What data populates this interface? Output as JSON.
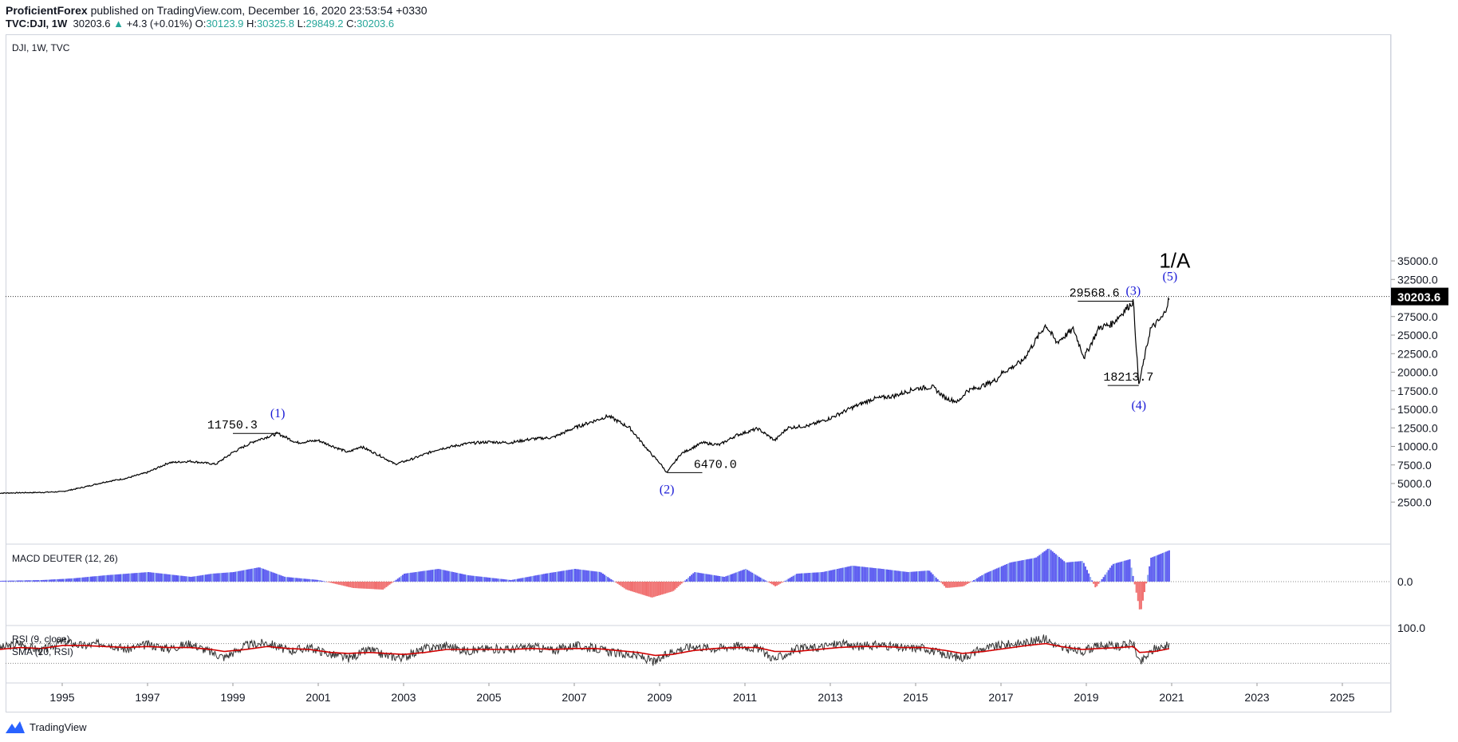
{
  "header": {
    "author": "ProficientForex",
    "published_text": " published on TradingView.com, December 16, 2020 23:53:54 +0330",
    "symbol": "TVC:DJI, 1W",
    "last": "30203.6",
    "change": "+4.3 (+0.01%)",
    "o_label": "O:",
    "o_value": "30123.9",
    "h_label": "H:",
    "h_value": "30325.8",
    "l_label": "L:",
    "l_value": "29849.2",
    "c_label": "C:",
    "c_value": "30203.6"
  },
  "footer": {
    "brand": "TradingView"
  },
  "colors": {
    "price": "#000000",
    "wave_label": "#1a1ad6",
    "macd_pos": "#5b5bf0",
    "macd_pos_light": "#8fa8f0",
    "macd_neg": "#f07070",
    "rsi": "#333333",
    "rsi_ma": "#d00000",
    "last_tag_bg": "#000000"
  },
  "chart_data": [
    {
      "type": "line",
      "pane_title": "DJI, 1W, TVC",
      "series": [
        {
          "x": [
            1993.5,
            1994.5,
            1995.0,
            1995.5,
            1996.0,
            1996.5,
            1997.0,
            1997.5,
            1998.0,
            1998.6,
            1999.0,
            1999.5,
            2000.05,
            2000.5,
            2001.0,
            2001.7,
            2002.0,
            2002.5,
            2002.8,
            2003.2,
            2003.8,
            2004.5,
            2005.0,
            2005.5,
            2006.0,
            2006.5,
            2007.0,
            2007.5,
            2007.8,
            2008.3,
            2008.8,
            2009.0,
            2009.17,
            2009.5,
            2010.0,
            2010.4,
            2010.8,
            2011.3,
            2011.7,
            2012.0,
            2012.5,
            2013.0,
            2013.5,
            2014.0,
            2014.5,
            2015.0,
            2015.4,
            2015.7,
            2016.0,
            2016.2,
            2016.5,
            2016.9,
            2017.0,
            2017.5,
            2018.05,
            2018.3,
            2018.7,
            2018.95,
            2019.3,
            2019.6,
            2020.1,
            2020.23,
            2020.5,
            2020.8,
            2020.96
          ],
          "y": [
            3700,
            3800,
            3900,
            4500,
            5200,
            5700,
            6500,
            7800,
            8000,
            7600,
            9200,
            10700,
            11750,
            10500,
            10800,
            9200,
            10000,
            8600,
            7600,
            8300,
            9600,
            10400,
            10600,
            10500,
            11000,
            11200,
            12500,
            13500,
            14100,
            12500,
            9000,
            7800,
            6470,
            9000,
            10500,
            10200,
            11500,
            12400,
            10800,
            12500,
            12800,
            13800,
            15200,
            16400,
            16800,
            17800,
            18000,
            16500,
            16000,
            17500,
            18000,
            19000,
            19800,
            21500,
            26400,
            24000,
            25800,
            22000,
            26000,
            26500,
            29568,
            18213,
            25800,
            27500,
            30203
          ]
        }
      ],
      "labels": [
        "11750.3",
        "6470.0",
        "29568.6",
        "18213.7"
      ],
      "wave_labels": [
        "(1)",
        "(2)",
        "(3)",
        "(4)",
        "(5)",
        "1/A"
      ],
      "last_value_tag": "30203.6",
      "y_ticks": [
        "35000.0",
        "32500.0",
        "30000.0",
        "27500.0",
        "25000.0",
        "22500.0",
        "20000.0",
        "17500.0",
        "15000.0",
        "12500.0",
        "10000.0",
        "7500.0",
        "5000.0",
        "2500.0"
      ],
      "x_ticks": [
        "1995",
        "1997",
        "1999",
        "2001",
        "2003",
        "2005",
        "2007",
        "2009",
        "2011",
        "2013",
        "2015",
        "2017",
        "2019",
        "2021",
        "2023",
        "2025"
      ],
      "xlim": [
        1993.7,
        2027.1
      ],
      "ylim": [
        0,
        36000
      ]
    },
    {
      "type": "bar",
      "pane_title": "MACD DEUTER (12, 26)",
      "y_ticks": [
        "0.0"
      ],
      "x": [
        1993.5,
        1994.5,
        1995.2,
        1996.0,
        1997.0,
        1998.0,
        1998.5,
        1999.0,
        1999.6,
        2000.2,
        2001.0,
        2001.8,
        2002.5,
        2003.0,
        2003.8,
        2004.5,
        2005.5,
        2006.3,
        2007.0,
        2007.6,
        2008.2,
        2008.8,
        2009.3,
        2009.8,
        2010.5,
        2011.0,
        2011.7,
        2012.2,
        2012.8,
        2013.5,
        2014.2,
        2014.8,
        2015.3,
        2015.7,
        2016.1,
        2016.6,
        2017.2,
        2017.8,
        2018.1,
        2018.5,
        2018.9,
        2019.2,
        2019.6,
        2020.0,
        2020.25,
        2020.5,
        2020.96
      ],
      "values": [
        0.05,
        0.1,
        0.2,
        0.4,
        0.6,
        0.3,
        0.5,
        0.6,
        0.9,
        0.3,
        0.1,
        -0.4,
        -0.5,
        0.5,
        0.8,
        0.4,
        0.1,
        0.5,
        0.8,
        0.6,
        -0.5,
        -1.0,
        -0.6,
        0.6,
        0.3,
        0.8,
        -0.3,
        0.5,
        0.6,
        1.0,
        0.8,
        0.6,
        0.7,
        -0.4,
        -0.3,
        0.5,
        1.2,
        1.5,
        2.1,
        1.2,
        1.3,
        -0.4,
        1.1,
        1.4,
        -2.0,
        1.5,
        2.0
      ]
    },
    {
      "type": "line",
      "pane_title": "RSI (9, close)",
      "pane_subtitle": "SMA (20, RSI)",
      "y_ticks": [
        "100.0"
      ],
      "x": [
        1993.5,
        1994.0,
        1994.5,
        1995.0,
        1995.5,
        1996.0,
        1996.5,
        1997.0,
        1997.5,
        1998.0,
        1998.5,
        1998.8,
        1999.3,
        1999.8,
        2000.3,
        2000.8,
        2001.3,
        2001.7,
        2002.2,
        2002.6,
        2003.0,
        2003.5,
        2004.0,
        2004.5,
        2005.0,
        2005.5,
        2006.0,
        2006.5,
        2007.0,
        2007.5,
        2008.0,
        2008.5,
        2008.9,
        2009.3,
        2009.8,
        2010.3,
        2010.8,
        2011.3,
        2011.7,
        2012.2,
        2012.7,
        2013.2,
        2013.7,
        2014.2,
        2014.7,
        2015.2,
        2015.7,
        2016.1,
        2016.6,
        2017.1,
        2017.6,
        2018.05,
        2018.4,
        2018.9,
        2019.3,
        2019.8,
        2020.1,
        2020.25,
        2020.6,
        2020.96
      ],
      "rsi": [
        60,
        70,
        55,
        75,
        65,
        72,
        58,
        68,
        60,
        70,
        52,
        42,
        66,
        72,
        55,
        62,
        48,
        40,
        58,
        45,
        42,
        60,
        66,
        55,
        60,
        58,
        64,
        56,
        66,
        60,
        50,
        45,
        32,
        55,
        65,
        60,
        66,
        60,
        38,
        58,
        62,
        70,
        64,
        68,
        60,
        62,
        46,
        42,
        60,
        68,
        72,
        80,
        60,
        54,
        66,
        64,
        70,
        30,
        60,
        66
      ],
      "rsi_ma": [
        58,
        62,
        60,
        66,
        66,
        64,
        62,
        64,
        62,
        62,
        58,
        54,
        58,
        64,
        60,
        58,
        52,
        50,
        52,
        50,
        48,
        52,
        58,
        58,
        58,
        58,
        60,
        58,
        60,
        60,
        56,
        52,
        46,
        48,
        56,
        60,
        62,
        62,
        54,
        54,
        58,
        62,
        64,
        64,
        62,
        62,
        56,
        50,
        54,
        60,
        66,
        70,
        64,
        58,
        60,
        62,
        64,
        52,
        54,
        60
      ]
    }
  ]
}
